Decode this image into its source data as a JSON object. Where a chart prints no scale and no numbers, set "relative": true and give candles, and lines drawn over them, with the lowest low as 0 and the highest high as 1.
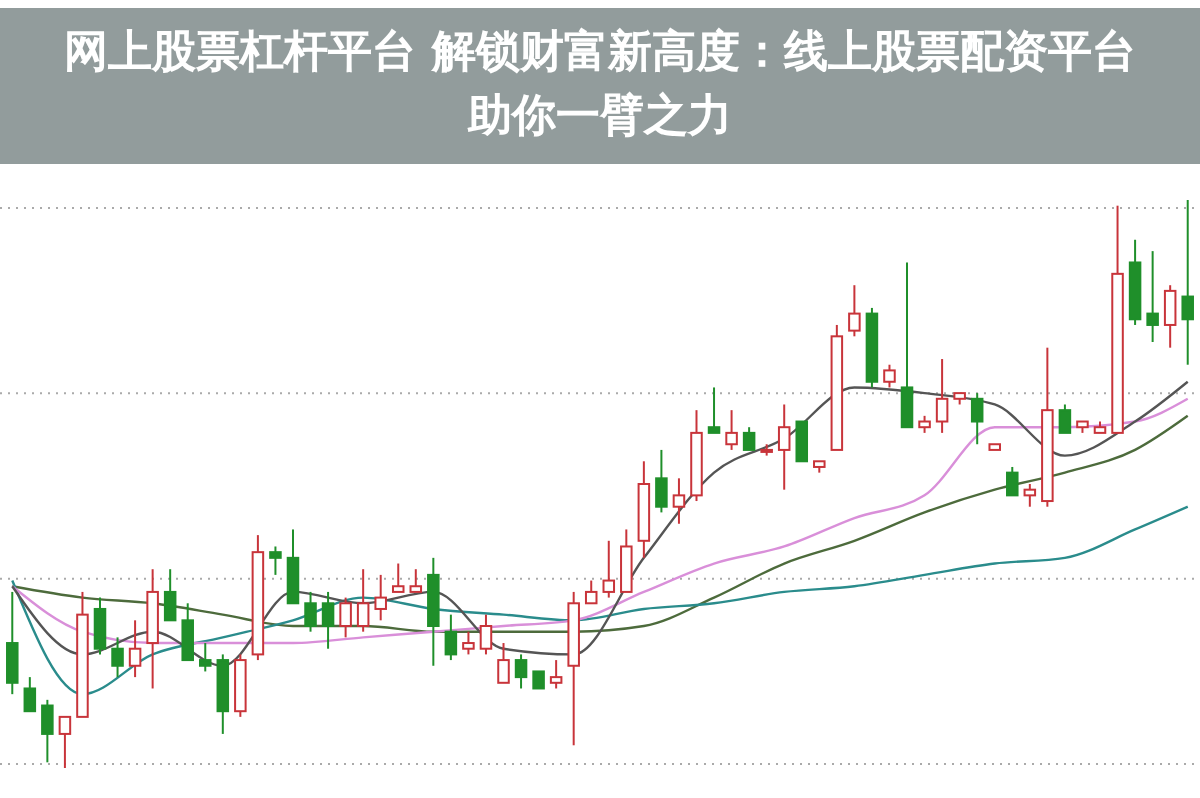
{
  "chart_data": {
    "type": "candlestick",
    "title": "网上股票杠杆平台 解锁财富新高度：线上股票配资平台助你一臂之力",
    "relative": true,
    "categories": [
      null,
      null,
      null,
      null,
      null,
      null,
      null,
      null,
      null,
      null,
      null,
      null,
      null,
      null,
      null,
      null,
      null,
      null,
      null,
      null,
      null,
      null,
      null,
      null,
      null,
      null,
      null,
      null,
      null,
      null,
      null,
      null,
      null,
      null,
      null,
      null,
      null,
      null,
      null,
      null,
      null,
      null,
      null,
      null,
      null,
      null,
      null,
      null,
      null,
      null,
      null,
      null,
      null,
      null,
      null,
      null,
      null,
      null,
      null,
      null,
      null,
      null,
      null,
      null,
      null,
      null,
      null,
      null
    ],
    "ohlc": [
      [
        0.22,
        0.31,
        0.13,
        0.15
      ],
      [
        0.14,
        0.16,
        0.1,
        0.1
      ],
      [
        0.11,
        0.12,
        0.01,
        0.06
      ],
      [
        0.06,
        0.09,
        0,
        0.09
      ],
      [
        0.09,
        0.31,
        0.09,
        0.27
      ],
      [
        0.28,
        0.3,
        0.2,
        0.21
      ],
      [
        0.21,
        0.23,
        0.16,
        0.18
      ],
      [
        0.18,
        0.26,
        0.16,
        0.21
      ],
      [
        0.22,
        0.35,
        0.14,
        0.31
      ],
      [
        0.31,
        0.35,
        0.26,
        0.26
      ],
      [
        0.26,
        0.29,
        0.19,
        0.19
      ],
      [
        0.19,
        0.22,
        0.17,
        0.18
      ],
      [
        0.19,
        0.2,
        0.06,
        0.1
      ],
      [
        0.1,
        0.2,
        0.09,
        0.19
      ],
      [
        0.2,
        0.41,
        0.19,
        0.38
      ],
      [
        0.38,
        0.39,
        0.34,
        0.37
      ],
      [
        0.37,
        0.42,
        0.29,
        0.29
      ],
      [
        0.29,
        0.31,
        0.24,
        0.25
      ],
      [
        0.29,
        0.31,
        0.21,
        0.25
      ],
      [
        0.25,
        0.3,
        0.23,
        0.29
      ],
      [
        0.25,
        0.35,
        0.24,
        0.29
      ],
      [
        0.28,
        0.34,
        0.26,
        0.3
      ],
      [
        0.31,
        0.36,
        0.31,
        0.32
      ],
      [
        0.31,
        0.35,
        0.31,
        0.32
      ],
      [
        0.34,
        0.37,
        0.18,
        0.25
      ],
      [
        0.24,
        0.27,
        0.19,
        0.2
      ],
      [
        0.21,
        0.24,
        0.2,
        0.22
      ],
      [
        0.21,
        0.27,
        0.2,
        0.25
      ],
      [
        0.15,
        0.22,
        0.15,
        0.19
      ],
      [
        0.19,
        0.2,
        0.14,
        0.16
      ],
      [
        0.17,
        0.17,
        0.14,
        0.14
      ],
      [
        0.15,
        0.19,
        0.14,
        0.16
      ],
      [
        0.18,
        0.31,
        0.04,
        0.29
      ],
      [
        0.29,
        0.33,
        0.29,
        0.31
      ],
      [
        0.31,
        0.4,
        0.3,
        0.33
      ],
      [
        0.31,
        0.42,
        0.31,
        0.39
      ],
      [
        0.4,
        0.54,
        0.37,
        0.5
      ],
      [
        0.51,
        0.56,
        0.45,
        0.46
      ],
      [
        0.46,
        0.51,
        0.43,
        0.48
      ],
      [
        0.48,
        0.63,
        0.47,
        0.59
      ],
      [
        0.6,
        0.67,
        0.59,
        0.59
      ],
      [
        0.57,
        0.63,
        0.56,
        0.59
      ],
      [
        0.59,
        0.6,
        0.56,
        0.56
      ],
      [
        0.56,
        0.57,
        0.55,
        0.56
      ],
      [
        0.56,
        0.64,
        0.49,
        0.6
      ],
      [
        0.61,
        0.61,
        0.54,
        0.54
      ],
      [
        0.53,
        0.54,
        0.52,
        0.54
      ],
      [
        0.56,
        0.78,
        0.56,
        0.76
      ],
      [
        0.77,
        0.85,
        0.76,
        0.8
      ],
      [
        0.8,
        0.81,
        0.67,
        0.68
      ],
      [
        0.68,
        0.71,
        0.67,
        0.7
      ],
      [
        0.67,
        0.89,
        0.6,
        0.6
      ],
      [
        0.6,
        0.62,
        0.59,
        0.61
      ],
      [
        0.61,
        0.72,
        0.59,
        0.65
      ],
      [
        0.65,
        0.66,
        0.64,
        0.66
      ],
      [
        0.65,
        0.66,
        0.57,
        0.61
      ],
      [
        0.56,
        0.57,
        0.56,
        0.57
      ],
      [
        0.52,
        0.53,
        0.48,
        0.48
      ],
      [
        0.48,
        0.5,
        0.46,
        0.49
      ],
      [
        0.47,
        0.74,
        0.46,
        0.63
      ],
      [
        0.63,
        0.64,
        0.59,
        0.59
      ],
      [
        0.6,
        0.61,
        0.59,
        0.61
      ],
      [
        0.59,
        0.61,
        0.59,
        0.6
      ],
      [
        0.59,
        0.99,
        0.59,
        0.87
      ],
      [
        0.89,
        0.93,
        0.78,
        0.79
      ],
      [
        0.8,
        0.91,
        0.75,
        0.78
      ],
      [
        0.78,
        0.85,
        0.74,
        0.84
      ],
      [
        0.83,
        1,
        0.71,
        0.79
      ]
    ],
    "series": [
      {
        "type": "line",
        "color": "#4d6b3c",
        "values": [
          0.32,
          null,
          null,
          null,
          0.3,
          null,
          null,
          null,
          0.29,
          null,
          null,
          null,
          0.27,
          null,
          null,
          null,
          0.25,
          null,
          null,
          null,
          0.25,
          null,
          null,
          null,
          0.24,
          null,
          null,
          null,
          0.24,
          null,
          null,
          null,
          0.24,
          null,
          null,
          null,
          0.25,
          null,
          null,
          null,
          0.3,
          null,
          null,
          null,
          0.36,
          null,
          null,
          null,
          0.4,
          null,
          null,
          null,
          0.45,
          null,
          null,
          null,
          0.49,
          null,
          null,
          null,
          0.52,
          null,
          null,
          null,
          0.56,
          null,
          null,
          0.62
        ]
      },
      {
        "type": "line",
        "color": "#2a8c8c",
        "values": [
          0.33,
          null,
          null,
          null,
          0.13,
          null,
          null,
          null,
          0.2,
          null,
          null,
          null,
          0.23,
          null,
          null,
          null,
          0.26,
          null,
          null,
          null,
          0.3,
          null,
          null,
          null,
          0.28,
          null,
          null,
          null,
          0.27,
          null,
          null,
          null,
          0.26,
          null,
          null,
          null,
          0.28,
          null,
          null,
          null,
          0.29,
          null,
          null,
          null,
          0.31,
          null,
          null,
          null,
          0.32,
          null,
          null,
          null,
          0.34,
          null,
          null,
          null,
          0.36,
          null,
          null,
          null,
          0.37,
          null,
          null,
          null,
          0.42,
          null,
          null,
          0.46
        ]
      },
      {
        "type": "line",
        "color": "#d98fd9",
        "values": [
          0.32,
          null,
          null,
          null,
          0.24,
          null,
          null,
          null,
          0.22,
          null,
          null,
          null,
          0.22,
          null,
          null,
          null,
          0.22,
          null,
          null,
          null,
          0.23,
          null,
          null,
          null,
          0.24,
          null,
          null,
          null,
          0.25,
          null,
          null,
          null,
          0.26,
          null,
          null,
          null,
          0.31,
          null,
          null,
          null,
          0.36,
          null,
          null,
          null,
          0.39,
          null,
          null,
          null,
          0.44,
          null,
          null,
          null,
          0.48,
          null,
          null,
          null,
          0.6,
          null,
          null,
          null,
          0.6,
          null,
          null,
          null,
          0.61,
          null,
          null,
          0.65
        ]
      },
      {
        "type": "line",
        "color": "#555555",
        "values": [
          0.32,
          null,
          null,
          null,
          0.2,
          null,
          null,
          null,
          0.24,
          null,
          null,
          null,
          0.18,
          null,
          null,
          null,
          0.31,
          null,
          null,
          null,
          0.29,
          null,
          null,
          null,
          0.31,
          null,
          null,
          null,
          0.21,
          null,
          null,
          null,
          0.2,
          null,
          null,
          null,
          0.37,
          null,
          null,
          null,
          0.52,
          null,
          null,
          null,
          0.58,
          null,
          null,
          null,
          0.67,
          null,
          null,
          null,
          0.66,
          null,
          null,
          null,
          0.64,
          null,
          null,
          null,
          0.55,
          null,
          null,
          null,
          0.61,
          null,
          null,
          0.68
        ]
      }
    ]
  }
}
